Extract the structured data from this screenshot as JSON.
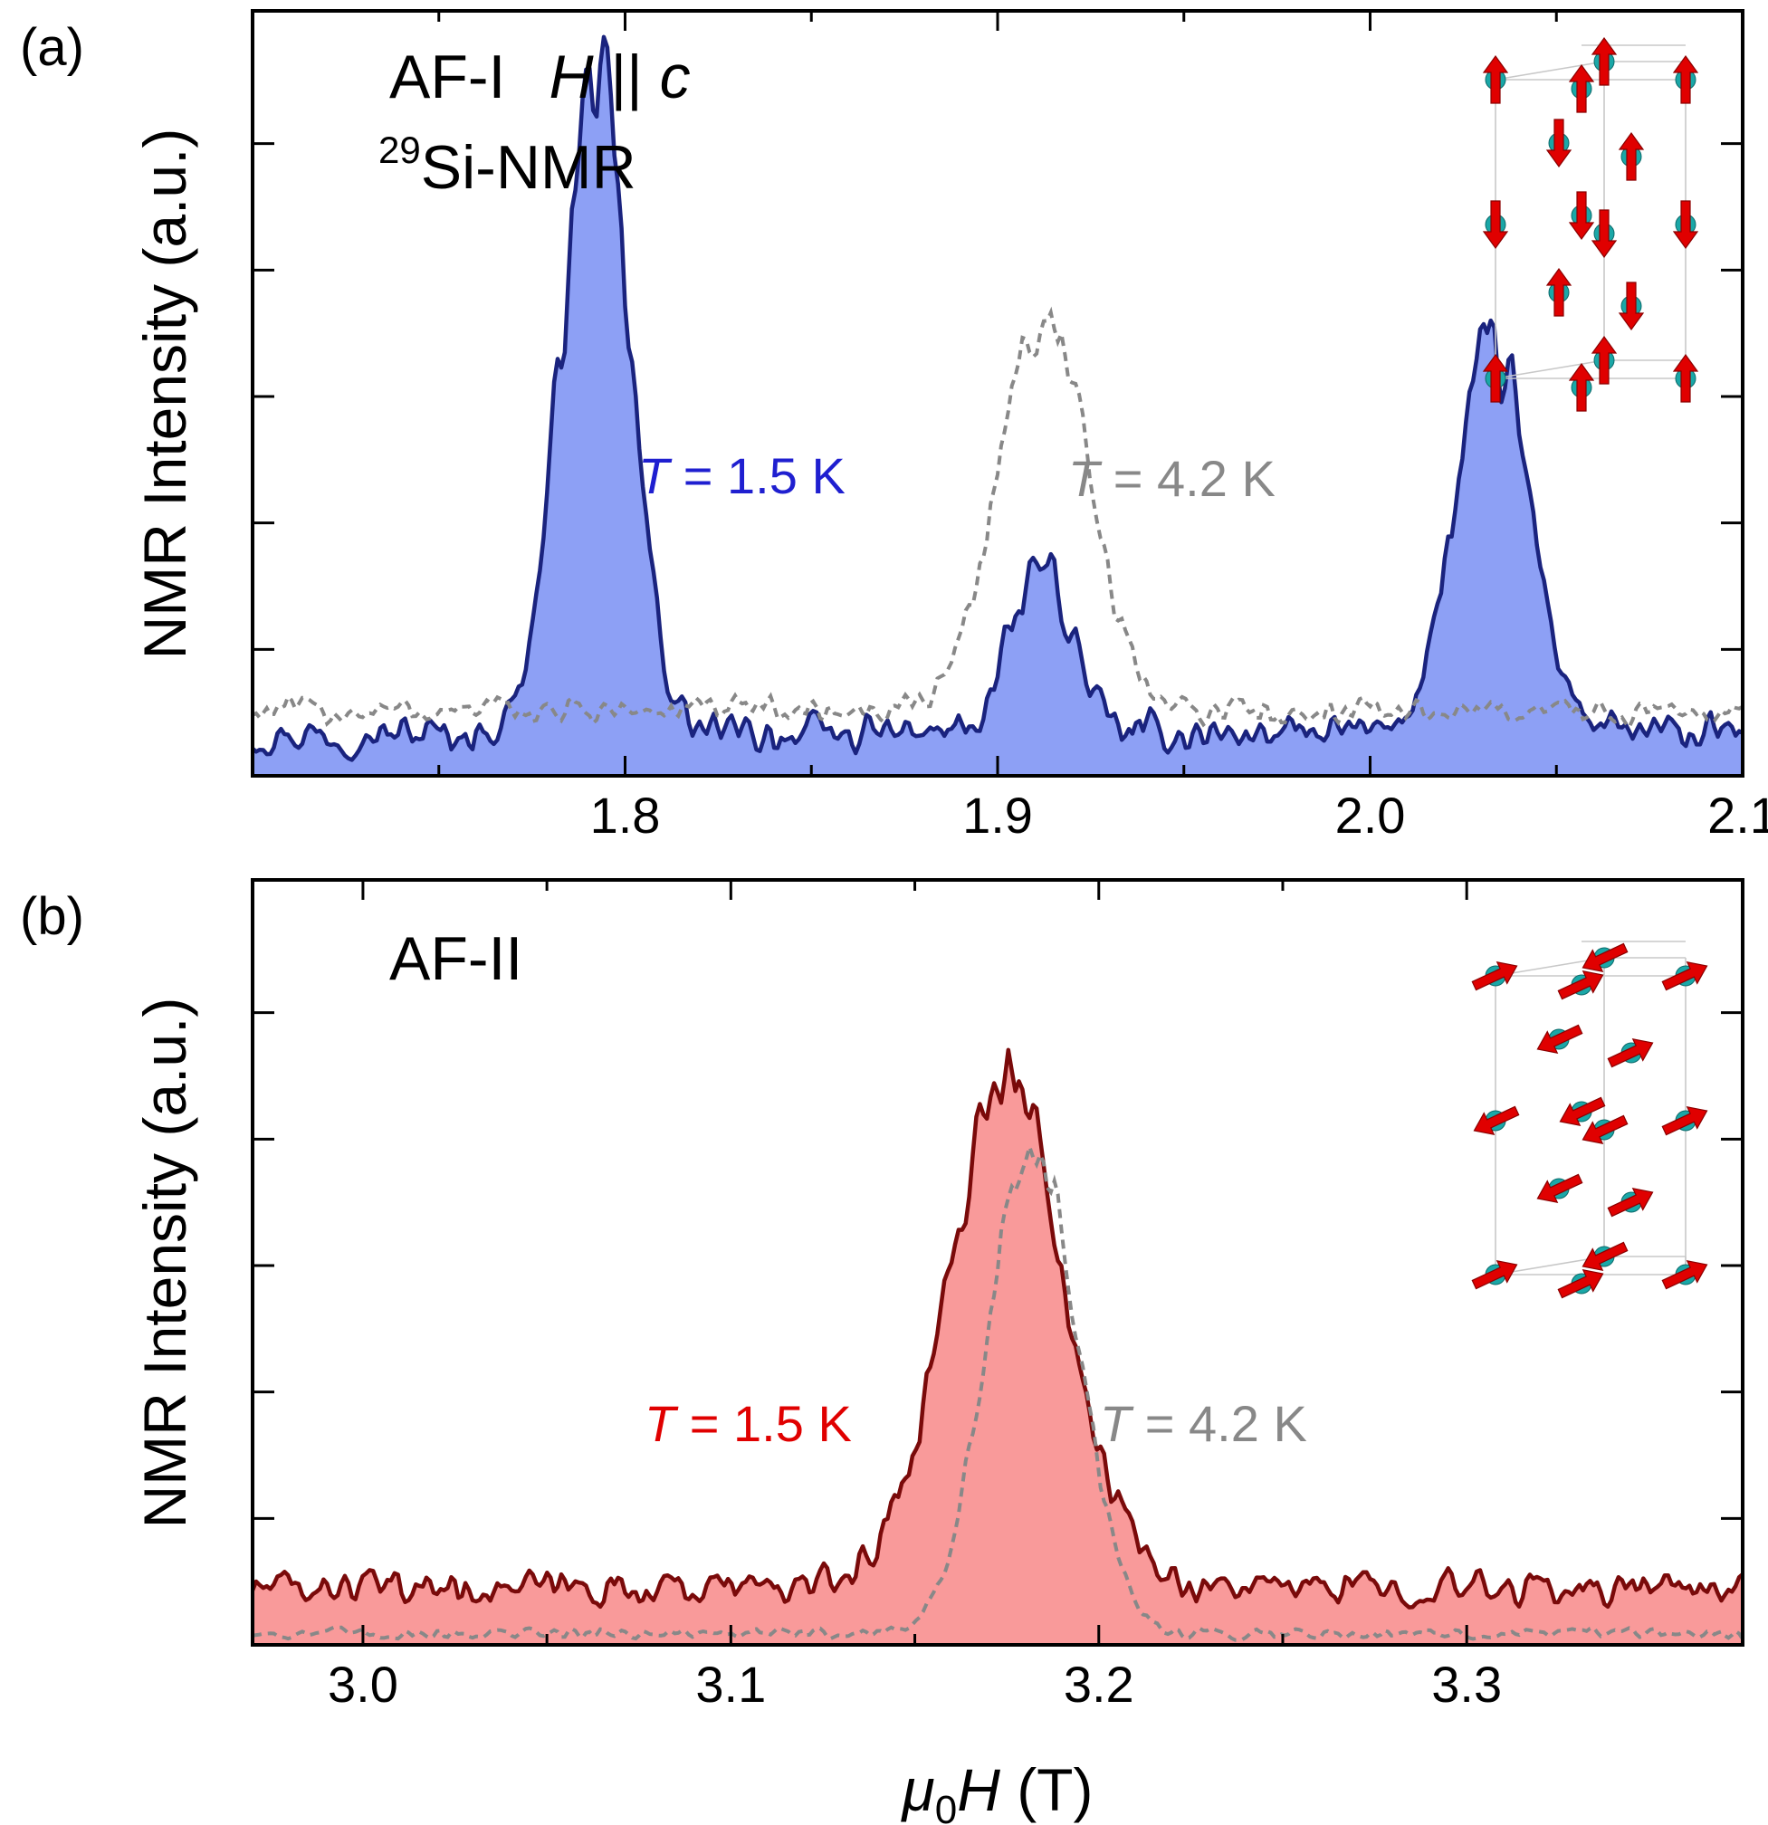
{
  "chart_data": [
    {
      "panel_label": "(a)",
      "type": "area",
      "phase": "AF-I",
      "field_direction": "H || c",
      "nucleus": "29Si-NMR",
      "ylabel": "NMR Intensity (a.u.)",
      "xlabel": "",
      "xlim": [
        1.7,
        2.1
      ],
      "ylim": [
        0,
        1.0
      ],
      "x_ticks": [
        "1.8",
        "1.9",
        "2.0",
        "2.1"
      ],
      "series": [
        {
          "name": "T = 1.5 K",
          "style": "filled",
          "color": "#1a237e",
          "fill": "#8da0f5",
          "baseline": 0.055,
          "peaks": [
            {
              "center": 1.792,
              "height": 0.86,
              "width": 0.009
            },
            {
              "center": 1.912,
              "height": 0.22,
              "width": 0.008
            },
            {
              "center": 2.033,
              "height": 0.5,
              "width": 0.01
            }
          ],
          "noise": 0.035
        },
        {
          "name": "T = 4.2 K",
          "style": "dashed",
          "color": "#888888",
          "baseline": 0.085,
          "peaks": [
            {
              "center": 1.912,
              "height": 0.52,
              "width": 0.012
            }
          ],
          "noise": 0.025
        }
      ],
      "inset": "spin-structure-AF-I"
    },
    {
      "panel_label": "(b)",
      "type": "area",
      "phase": "AF-II",
      "ylabel": "NMR Intensity (a.u.)",
      "xlabel": "μ0H (T)",
      "xlim": [
        2.97,
        3.375
      ],
      "ylim": [
        0,
        1.0
      ],
      "x_ticks": [
        "3.0",
        "3.1",
        "3.2",
        "3.3"
      ],
      "series": [
        {
          "name": "T = 1.5 K",
          "style": "filled",
          "color": "#7a0a0a",
          "fill": "#f99a9a",
          "baseline": 0.075,
          "peaks": [
            {
              "center": 3.175,
              "height": 0.67,
              "width": 0.016
            }
          ],
          "noise": 0.03
        },
        {
          "name": "T = 4.2 K",
          "style": "dashed",
          "color": "#888888",
          "baseline": 0.015,
          "peaks": [
            {
              "center": 3.182,
              "height": 0.64,
              "width": 0.012
            }
          ],
          "noise": 0.01
        }
      ],
      "inset": "spin-structure-AF-II"
    }
  ],
  "labels": {
    "panel_a": "(a)",
    "panel_b": "(b)",
    "phase_a": "AF-I",
    "field_dir_italic": "H",
    "field_dir_sep": " || ",
    "field_dir_c": "c",
    "nucleus_sup": "29",
    "nucleus_text": "Si-NMR",
    "phase_b": "AF-II",
    "temp_T": "T",
    "temp_low": " = 1.5 K",
    "temp_high": " = 4.2 K",
    "ylabel": "NMR Intensity (a.u.)",
    "xlabel_mu": "μ",
    "xlabel_sub": "0",
    "xlabel_H": "H",
    "xlabel_unit": " (T)"
  },
  "colors": {
    "blue_line": "#1a237e",
    "blue_fill": "#8da0f5",
    "blue_text": "#1f1fd0",
    "red_line": "#7a0a0a",
    "red_fill": "#f99a9a",
    "red_text": "#e00000",
    "gray": "#888888"
  }
}
